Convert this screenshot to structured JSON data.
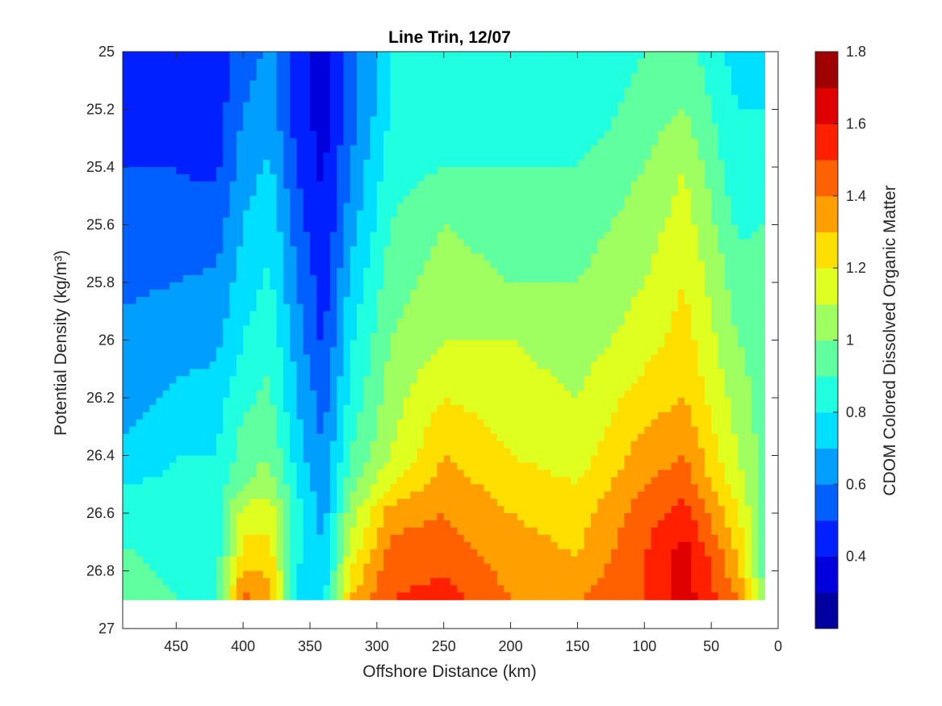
{
  "chart_data": {
    "type": "heatmap",
    "subtype": "filled-contour",
    "title": "Line Trin, 12/07",
    "xlabel": "Offshore Distance (km)",
    "ylabel": "Potential Density (kg/m³)",
    "colorbar_label": "CDOM Colored Dissolved Organic Matter",
    "xlim": [
      490,
      0
    ],
    "x_reversed": true,
    "ylim": [
      25,
      27
    ],
    "y_reversed": true,
    "x_ticks": [
      "450",
      "400",
      "350",
      "300",
      "250",
      "200",
      "150",
      "100",
      "50",
      "0"
    ],
    "y_ticks": [
      "25",
      "25.2",
      "25.4",
      "25.6",
      "25.8",
      "26",
      "26.2",
      "26.4",
      "26.6",
      "26.8",
      "27"
    ],
    "colorbar_range": [
      0.2,
      1.8
    ],
    "colorbar_ticks": [
      "0.4",
      "0.6",
      "0.8",
      "1",
      "1.2",
      "1.4",
      "1.6",
      "1.8"
    ],
    "colormap": "jet",
    "levels": [
      0.3,
      0.4,
      0.5,
      0.6,
      0.7,
      0.8,
      0.9,
      1.0,
      1.1,
      1.2,
      1.3,
      1.4,
      1.5,
      1.6,
      1.7
    ],
    "data_extent": {
      "x_range": [
        490,
        10
      ],
      "y_range": [
        25,
        26.9
      ]
    },
    "transects": [
      {
        "x": 490,
        "values": [
          0.5,
          0.5,
          0.5,
          0.52,
          0.58,
          0.63,
          0.65,
          0.72,
          0.8,
          0.85,
          0.92,
          0.97
        ]
      },
      {
        "x": 450,
        "values": [
          0.45,
          0.45,
          0.5,
          0.52,
          0.6,
          0.65,
          0.72,
          0.8,
          0.82,
          0.82,
          0.85,
          0.9
        ]
      },
      {
        "x": 420,
        "values": [
          0.42,
          0.45,
          0.48,
          0.55,
          0.62,
          0.67,
          0.75,
          0.8,
          0.85,
          0.85,
          0.85,
          0.9
        ]
      },
      {
        "x": 400,
        "values": [
          0.55,
          0.6,
          0.65,
          0.7,
          0.75,
          0.8,
          0.88,
          0.95,
          1.0,
          1.15,
          1.25,
          1.45
        ]
      },
      {
        "x": 380,
        "values": [
          0.62,
          0.65,
          0.72,
          0.78,
          0.82,
          0.88,
          0.92,
          1.0,
          1.05,
          1.15,
          1.25,
          1.35
        ]
      },
      {
        "x": 360,
        "values": [
          0.45,
          0.45,
          0.5,
          0.55,
          0.6,
          0.65,
          0.7,
          0.75,
          0.8,
          0.85,
          0.82,
          0.75
        ]
      },
      {
        "x": 340,
        "values": [
          0.35,
          0.35,
          0.38,
          0.4,
          0.45,
          0.48,
          0.55,
          0.6,
          0.62,
          0.65,
          0.72,
          0.75
        ]
      },
      {
        "x": 320,
        "values": [
          0.55,
          0.55,
          0.6,
          0.65,
          0.72,
          0.78,
          0.82,
          0.9,
          0.95,
          1.05,
          1.15,
          1.3
        ]
      },
      {
        "x": 290,
        "values": [
          0.8,
          0.8,
          0.85,
          0.9,
          0.95,
          1.0,
          1.05,
          1.1,
          1.2,
          1.35,
          1.45,
          1.5
        ]
      },
      {
        "x": 250,
        "values": [
          0.8,
          0.82,
          0.9,
          1.0,
          1.05,
          1.1,
          1.2,
          1.3,
          1.35,
          1.4,
          1.45,
          1.55
        ]
      },
      {
        "x": 200,
        "values": [
          0.85,
          0.85,
          0.9,
          0.95,
          1.0,
          1.1,
          1.15,
          1.2,
          1.25,
          1.3,
          1.35,
          1.4
        ]
      },
      {
        "x": 150,
        "values": [
          0.8,
          0.82,
          0.9,
          0.95,
          1.0,
          1.05,
          1.1,
          1.15,
          1.2,
          1.25,
          1.3,
          1.4
        ]
      },
      {
        "x": 100,
        "values": [
          0.9,
          0.95,
          1.0,
          1.05,
          1.1,
          1.15,
          1.25,
          1.35,
          1.4,
          1.45,
          1.5,
          1.5
        ]
      },
      {
        "x": 70,
        "values": [
          0.95,
          1.0,
          1.1,
          1.15,
          1.2,
          1.25,
          1.3,
          1.4,
          1.45,
          1.55,
          1.65,
          1.65
        ]
      },
      {
        "x": 30,
        "values": [
          0.75,
          0.8,
          0.82,
          0.88,
          0.95,
          1.0,
          1.05,
          1.1,
          1.15,
          1.2,
          1.3,
          1.4
        ]
      },
      {
        "x": 10,
        "values": [
          0.8,
          0.8,
          0.85,
          0.9,
          0.95,
          0.95,
          0.95,
          0.95,
          0.95,
          0.95,
          0.95,
          0.95
        ]
      }
    ],
    "transect_y": [
      25.0,
      25.2,
      25.4,
      25.6,
      25.8,
      26.0,
      26.2,
      26.4,
      26.5,
      26.6,
      26.75,
      26.9
    ],
    "grid": false,
    "legend": "colorbar-right"
  }
}
